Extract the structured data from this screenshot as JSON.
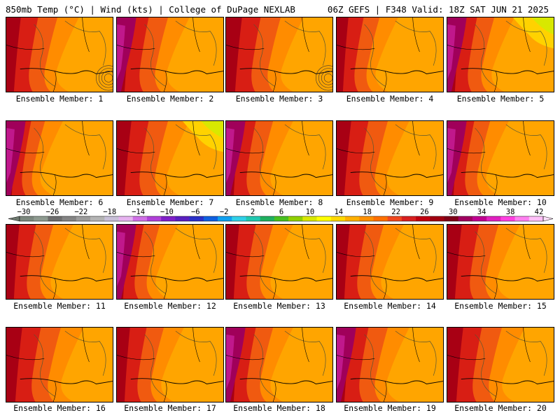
{
  "header": {
    "left": "850mb Temp (°C) | Wind (kts) | College of DuPage NEXLAB",
    "right": "06Z GEFS | F348 Valid: 18Z SAT JUN 21 2025"
  },
  "colorbar": {
    "labels": [
      "−30",
      "−26",
      "−22",
      "−18",
      "−14",
      "−10",
      "−6",
      "−2",
      "2",
      "6",
      "10",
      "14",
      "18",
      "22",
      "26",
      "30",
      "34",
      "38",
      "42"
    ],
    "colors": [
      "#7c887e",
      "#8e9a90",
      "#6d6d6d",
      "#848484",
      "#9c9c9c",
      "#b4b4b4",
      "#c8c0d8",
      "#e6b3f0",
      "#d070e6",
      "#b040d8",
      "#8020c8",
      "#5a20c0",
      "#2a30c8",
      "#1060e0",
      "#10a0f0",
      "#30d0e8",
      "#20c8b0",
      "#20b060",
      "#48c020",
      "#90d000",
      "#d8e800",
      "#ffff00",
      "#ffd800",
      "#ffb000",
      "#ff9000",
      "#ff7000",
      "#f04820",
      "#d82020",
      "#c00010",
      "#a00010",
      "#800018",
      "#a00060",
      "#c00090",
      "#e020c0",
      "#ff40e0",
      "#ff80f0",
      "#ffc0f8"
    ]
  },
  "members": [
    {
      "label": "Ensemble Member: 1"
    },
    {
      "label": "Ensemble Member: 2"
    },
    {
      "label": "Ensemble Member: 3"
    },
    {
      "label": "Ensemble Member: 4"
    },
    {
      "label": "Ensemble Member: 5"
    },
    {
      "label": "Ensemble Member: 6"
    },
    {
      "label": "Ensemble Member: 7"
    },
    {
      "label": "Ensemble Member: 8"
    },
    {
      "label": "Ensemble Member: 9"
    },
    {
      "label": "Ensemble Member: 10"
    },
    {
      "label": "Ensemble Member: 11"
    },
    {
      "label": "Ensemble Member: 12"
    },
    {
      "label": "Ensemble Member: 13"
    },
    {
      "label": "Ensemble Member: 14"
    },
    {
      "label": "Ensemble Member: 15"
    },
    {
      "label": "Ensemble Member: 16"
    },
    {
      "label": "Ensemble Member: 17"
    },
    {
      "label": "Ensemble Member: 18"
    },
    {
      "label": "Ensemble Member: 19"
    },
    {
      "label": "Ensemble Member: 20"
    }
  ]
}
